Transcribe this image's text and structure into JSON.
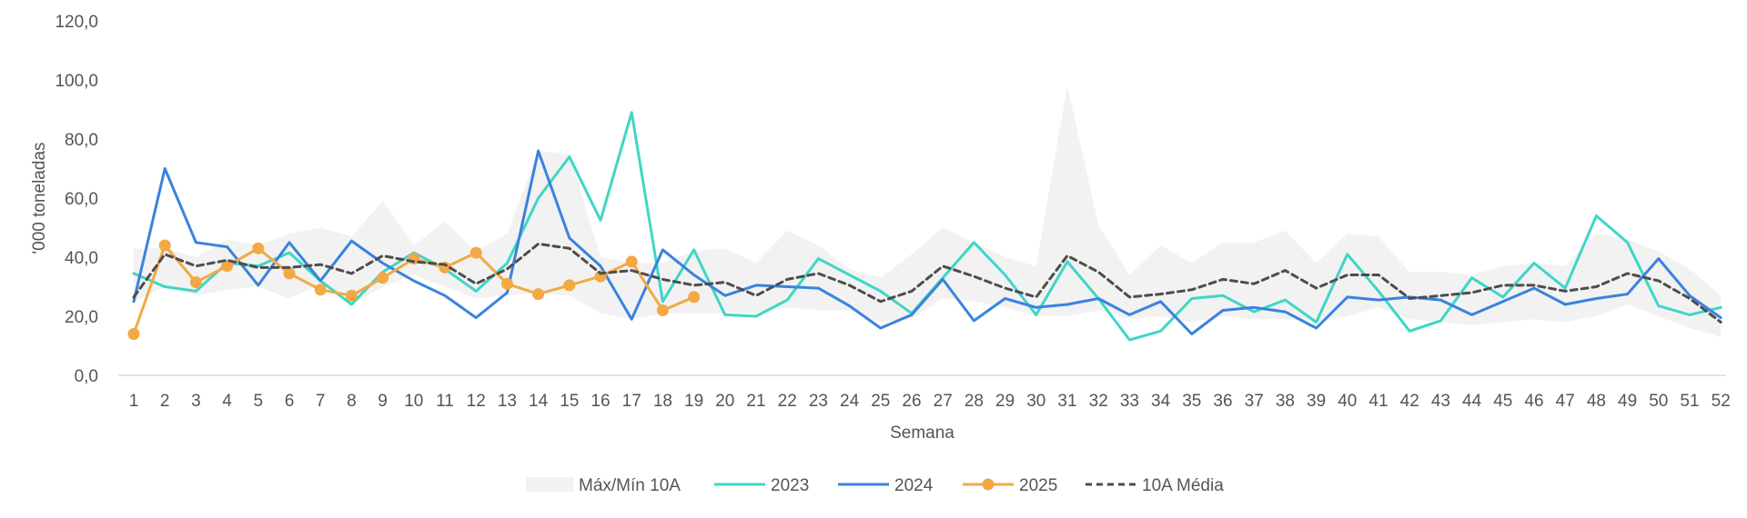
{
  "chart_data": {
    "type": "line",
    "xlabel": "Semana",
    "ylabel": "'000 toneladas",
    "ylim": [
      0,
      120
    ],
    "yticks": [
      "0,0",
      "20,0",
      "40,0",
      "60,0",
      "80,0",
      "100,0",
      "120,0"
    ],
    "ytick_values": [
      0,
      20,
      40,
      60,
      80,
      100,
      120
    ],
    "x": [
      "1",
      "2",
      "3",
      "4",
      "5",
      "6",
      "7",
      "8",
      "9",
      "10",
      "11",
      "12",
      "13",
      "14",
      "15",
      "16",
      "17",
      "18",
      "19",
      "20",
      "21",
      "22",
      "23",
      "24",
      "25",
      "26",
      "27",
      "28",
      "29",
      "30",
      "31",
      "32",
      "33",
      "34",
      "35",
      "36",
      "37",
      "38",
      "39",
      "40",
      "41",
      "42",
      "43",
      "44",
      "45",
      "46",
      "47",
      "48",
      "49",
      "50",
      "51",
      "52"
    ],
    "grid": false,
    "legend_position": "bottom",
    "band": {
      "name": "Máx/Mín 10A",
      "color": "#f2f2f2",
      "max": [
        43,
        43,
        40,
        46,
        44,
        48,
        50,
        47,
        59,
        44,
        52,
        42,
        48,
        76,
        75,
        40,
        38,
        38,
        42,
        43,
        38,
        49,
        44,
        36,
        33,
        41,
        50,
        45,
        40,
        37,
        98,
        51,
        34,
        44,
        38,
        45,
        45,
        49,
        38,
        48,
        47,
        35,
        35,
        34,
        37,
        38,
        37,
        48,
        46,
        42,
        36,
        27
      ],
      "min": [
        25,
        30,
        27,
        29,
        30,
        26,
        31,
        24,
        30,
        34,
        30,
        26,
        27,
        28,
        27,
        21,
        19,
        21,
        21,
        21,
        21,
        23,
        22,
        22,
        18,
        19,
        26,
        25,
        23,
        20,
        20,
        22,
        19,
        20,
        18,
        20,
        19,
        19,
        18,
        20,
        23,
        19,
        18,
        17,
        18,
        19,
        18,
        20,
        24,
        20,
        16,
        13
      ]
    },
    "series": [
      {
        "name": "2023",
        "color": "#3fd6c6",
        "dash": "",
        "marker": false,
        "values": [
          34.5,
          30,
          28.5,
          38,
          37,
          41.5,
          32,
          24,
          35,
          41.5,
          36,
          28.5,
          38,
          60,
          74,
          52.5,
          89,
          25,
          42.5,
          20.5,
          20,
          25.5,
          39.5,
          34,
          28.5,
          21,
          33,
          45,
          34,
          20.5,
          38.5,
          26,
          12,
          15,
          26,
          27,
          21.5,
          25.5,
          18,
          41,
          28.5,
          15,
          18.5,
          33,
          26.5,
          38,
          29.5,
          54,
          45,
          23.5,
          20.5,
          23
        ]
      },
      {
        "name": "2024",
        "color": "#3a83de",
        "dash": "",
        "marker": false,
        "values": [
          25,
          70,
          45,
          43.5,
          30.5,
          45,
          32,
          45.5,
          38,
          32,
          27,
          19.5,
          28,
          76,
          46.5,
          37,
          19,
          42.5,
          34,
          27,
          30.5,
          30,
          29.5,
          23.5,
          16,
          20.5,
          32.5,
          18.5,
          26,
          23,
          24,
          26,
          20.5,
          25,
          14,
          22,
          23,
          21.5,
          16,
          26.5,
          25.5,
          26.5,
          25.5,
          20.5,
          25,
          29.5,
          24,
          26,
          27.5,
          39.5,
          27,
          19.5
        ]
      },
      {
        "name": "2025",
        "color": "#f2a944",
        "dash": "",
        "marker": true,
        "values": [
          14,
          44,
          31.5,
          37,
          43,
          34.5,
          29,
          27,
          33,
          39.5,
          36.5,
          41.5,
          31,
          27.5,
          30.5,
          33.5,
          38.5,
          22,
          26.5,
          null,
          null,
          null,
          null,
          null,
          null,
          null,
          null,
          null,
          null,
          null,
          null,
          null,
          null,
          null,
          null,
          null,
          null,
          null,
          null,
          null,
          null,
          null,
          null,
          null,
          null,
          null,
          null,
          null,
          null,
          null,
          null,
          null
        ]
      },
      {
        "name": "10A Média",
        "color": "#4d4d4d",
        "dash": "7,5",
        "marker": false,
        "values": [
          26.5,
          41,
          37,
          39,
          36.5,
          36.5,
          37.5,
          34.5,
          40.5,
          38.5,
          37.5,
          31,
          36,
          44.5,
          43,
          34.5,
          35.5,
          32.5,
          30.5,
          31.5,
          27,
          32.5,
          34.5,
          30.5,
          25,
          28.5,
          37,
          33.5,
          29.5,
          26.5,
          40.5,
          35,
          26.5,
          27.5,
          29,
          32.5,
          31,
          35.5,
          29.5,
          34,
          34,
          26,
          27,
          28,
          30.5,
          30.5,
          28.5,
          30,
          34.5,
          32,
          26,
          18
        ]
      }
    ]
  }
}
